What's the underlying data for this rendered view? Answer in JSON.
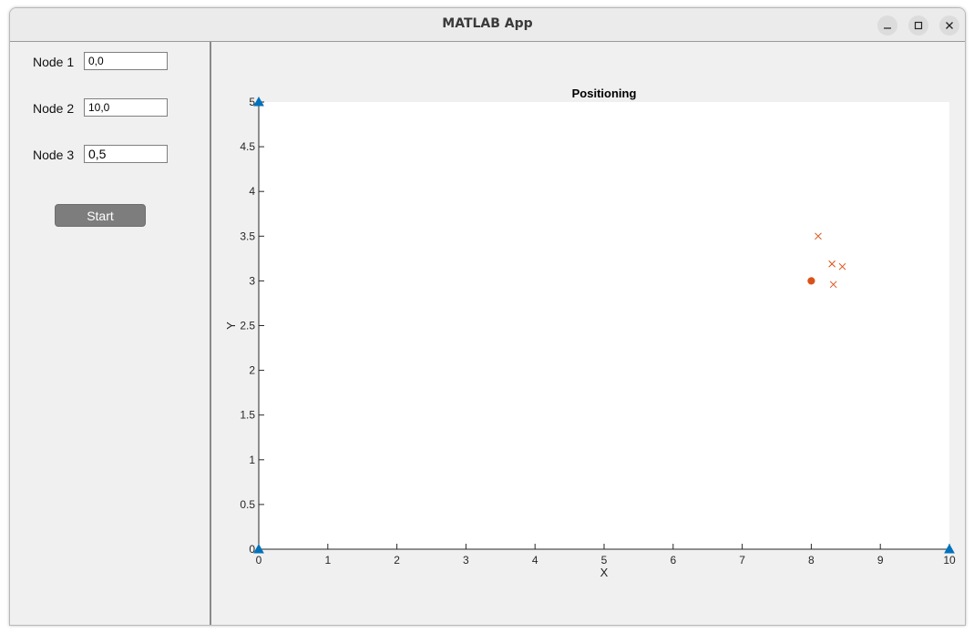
{
  "window": {
    "title": "MATLAB App"
  },
  "titlebar_buttons": [
    {
      "name": "minimize-icon"
    },
    {
      "name": "maximize-icon"
    },
    {
      "name": "close-icon"
    }
  ],
  "inputs": [
    {
      "label": "Node 1",
      "value": "0,0"
    },
    {
      "label": "Node 2",
      "value": "10,0"
    },
    {
      "label": "Node 3",
      "value": "0,5"
    }
  ],
  "start_button": {
    "label": "Start"
  },
  "chart_data": {
    "type": "scatter",
    "title": "Positioning",
    "xlabel": "X",
    "ylabel": "Y",
    "xlim": [
      0,
      10
    ],
    "ylim": [
      0,
      5
    ],
    "xticks": [
      0,
      1,
      2,
      3,
      4,
      5,
      6,
      7,
      8,
      9,
      10
    ],
    "yticks": [
      0,
      0.5,
      1,
      1.5,
      2,
      2.5,
      3,
      3.5,
      4,
      4.5,
      5
    ],
    "grid": false,
    "series": [
      {
        "marker": "triangle",
        "color": "#0072bd",
        "points": [
          [
            0,
            0
          ],
          [
            10,
            0
          ],
          [
            0,
            5
          ]
        ]
      },
      {
        "marker": "x",
        "color": "#d95319",
        "points": [
          [
            8.1,
            3.5
          ],
          [
            8.3,
            3.19
          ],
          [
            8.45,
            3.16
          ],
          [
            8.32,
            2.96
          ]
        ]
      },
      {
        "marker": "filled-circle",
        "color": "#d95319",
        "points": [
          [
            8.0,
            3.0
          ]
        ]
      }
    ]
  }
}
